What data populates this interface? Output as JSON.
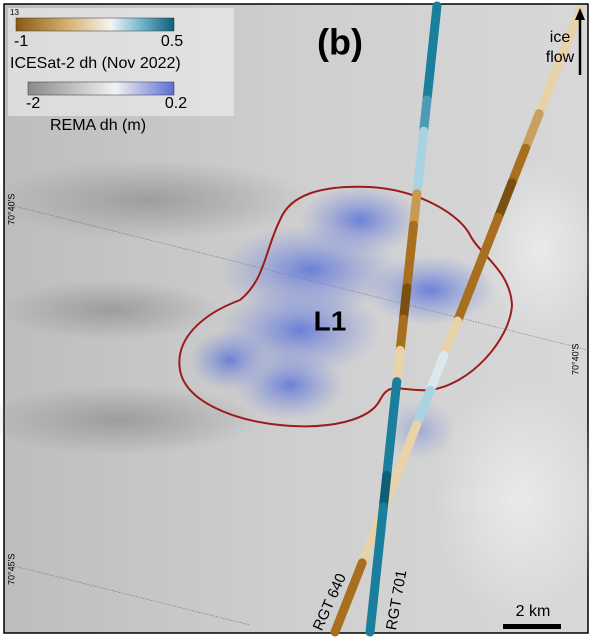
{
  "panel_label": "(b)",
  "legend": {
    "top_tick": "13",
    "icesat": {
      "min": "-1",
      "max": "0.5",
      "title": "ICESat-2 dh (Nov 2022)"
    },
    "rema": {
      "min": "-2",
      "max": "0.2",
      "title": "REMA dh (m)"
    }
  },
  "ice_flow": [
    "ice",
    "flow"
  ],
  "graticule": {
    "left_upper": "70°40'S",
    "right": "70°40'S",
    "left_lower": "70°45'S"
  },
  "lake_label": "L1",
  "tracks": {
    "rgt_640": "RGT 640",
    "rgt_701": "RGT 701"
  },
  "scale_bar": "2 km"
}
